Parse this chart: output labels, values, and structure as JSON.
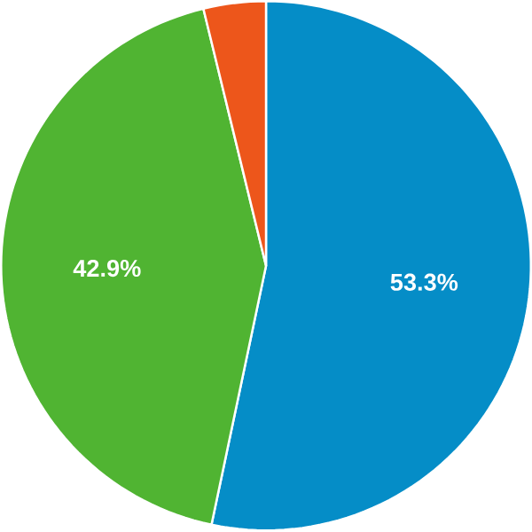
{
  "chart_data": {
    "type": "pie",
    "categories": [
      null,
      null,
      null
    ],
    "values": [
      53.3,
      42.9,
      3.8
    ],
    "colors": [
      "#058dc7",
      "#50b432",
      "#ed561b"
    ],
    "value_labels": [
      "53.3%",
      "42.9%",
      null
    ]
  }
}
